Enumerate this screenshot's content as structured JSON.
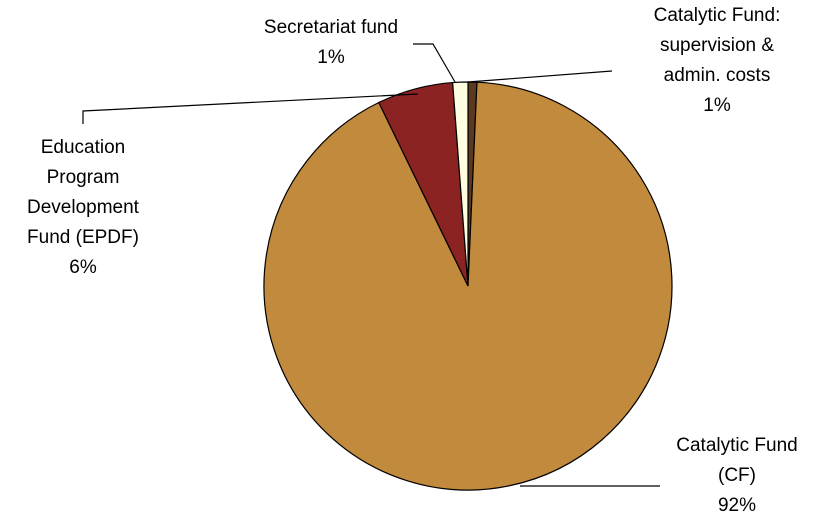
{
  "chart_data": {
    "type": "pie",
    "title": "",
    "slices": [
      {
        "label": "Catalytic Fund: supervision & admin. costs",
        "label_lines": [
          "Catalytic Fund:",
          "supervision &",
          "admin. costs"
        ],
        "percent_label": "1%",
        "value": 0.7,
        "color": "#5c3a21"
      },
      {
        "label": "Catalytic Fund (CF)",
        "label_lines": [
          "Catalytic Fund",
          "(CF)"
        ],
        "percent_label": "92%",
        "value": 92.1,
        "color": "#c28a3c"
      },
      {
        "label": "Education Program Development Fund (EPDF)",
        "label_lines": [
          "Education",
          "Program",
          "Development",
          "Fund (EPDF)"
        ],
        "percent_label": "6%",
        "value": 6.0,
        "color": "#8b2323"
      },
      {
        "label": "Secretariat fund",
        "label_lines": [
          "Secretariat fund"
        ],
        "percent_label": "1%",
        "value": 1.2,
        "color": "#fffde0"
      }
    ],
    "start_angle": "12 o'clock",
    "direction": "clockwise",
    "legend": "none"
  }
}
